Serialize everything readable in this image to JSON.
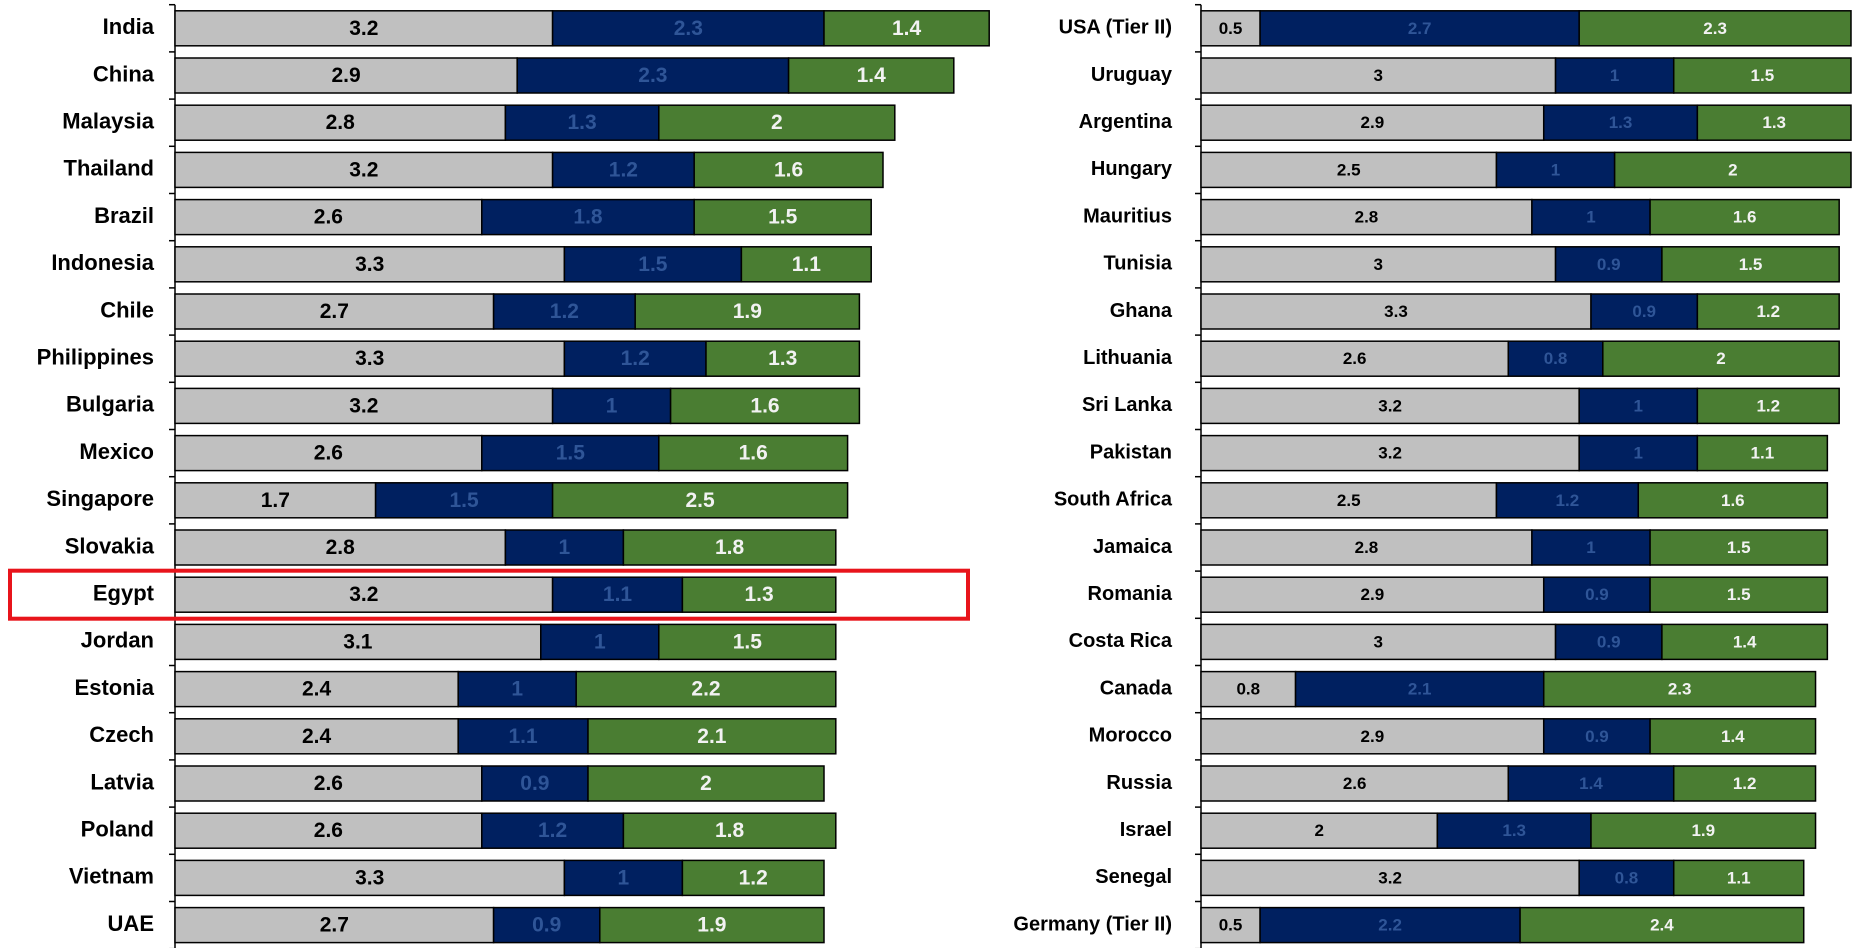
{
  "chart_data": [
    {
      "type": "stacked-barh",
      "categories": [
        "India",
        "China",
        "Malaysia",
        "Thailand",
        "Brazil",
        "Indonesia",
        "Chile",
        "Philippines",
        "Bulgaria",
        "Mexico",
        "Singapore",
        "Slovakia",
        "Egypt",
        "Jordan",
        "Estonia",
        "Czech",
        "Latvia",
        "Poland",
        "Vietnam",
        "UAE"
      ],
      "series": [
        {
          "color": "#c0c0c0",
          "label_color": "#000000",
          "values": [
            3.2,
            2.9,
            2.8,
            3.2,
            2.6,
            3.3,
            2.7,
            3.3,
            3.2,
            2.6,
            1.7,
            2.8,
            3.2,
            3.1,
            2.4,
            2.4,
            2.6,
            2.6,
            3.3,
            2.7
          ]
        },
        {
          "color": "#002060",
          "label_color": "#2f5597",
          "values": [
            2.3,
            2.3,
            1.3,
            1.2,
            1.8,
            1.5,
            1.2,
            1.2,
            1,
            1.5,
            1.5,
            1,
            1.1,
            1,
            1,
            1.1,
            0.9,
            1.2,
            1,
            0.9
          ]
        },
        {
          "color": "#4a7d32",
          "label_color": "#f2f2f2",
          "values": [
            1.4,
            1.4,
            2,
            1.6,
            1.5,
            1.1,
            1.9,
            1.3,
            1.6,
            1.6,
            2.5,
            1.8,
            1.3,
            1.5,
            2.2,
            2.1,
            2,
            1.8,
            1.2,
            1.9
          ]
        }
      ],
      "xlim": [
        0,
        7
      ],
      "highlight": "Egypt"
    },
    {
      "type": "stacked-barh",
      "categories": [
        "USA (Tier II)",
        "Uruguay",
        "Argentina",
        "Hungary",
        "Mauritius",
        "Tunisia",
        "Ghana",
        "Lithuania",
        "Sri Lanka",
        "Pakistan",
        "South Africa",
        "Jamaica",
        "Romania",
        "Costa Rica",
        "Canada",
        "Morocco",
        "Russia",
        "Israel",
        "Senegal",
        "Germany (Tier II)"
      ],
      "series": [
        {
          "color": "#c0c0c0",
          "label_color": "#000000",
          "values": [
            0.5,
            3,
            2.9,
            2.5,
            2.8,
            3,
            3.3,
            2.6,
            3.2,
            3.2,
            2.5,
            2.8,
            2.9,
            3,
            0.8,
            2.9,
            2.6,
            2,
            3.2,
            0.5
          ]
        },
        {
          "color": "#002060",
          "label_color": "#2f5597",
          "values": [
            2.7,
            1,
            1.3,
            1,
            1,
            0.9,
            0.9,
            0.8,
            1,
            1,
            1.2,
            1,
            0.9,
            0.9,
            2.1,
            0.9,
            1.4,
            1.3,
            0.8,
            2.2
          ]
        },
        {
          "color": "#4a7d32",
          "label_color": "#f2f2f2",
          "values": [
            2.3,
            1.5,
            1.3,
            2,
            1.6,
            1.5,
            1.2,
            2,
            1.2,
            1.1,
            1.6,
            1.5,
            1.5,
            1.4,
            2.3,
            1.4,
            1.2,
            1.9,
            1.1,
            2.4
          ]
        }
      ],
      "xlim": [
        0,
        5.5
      ]
    }
  ]
}
